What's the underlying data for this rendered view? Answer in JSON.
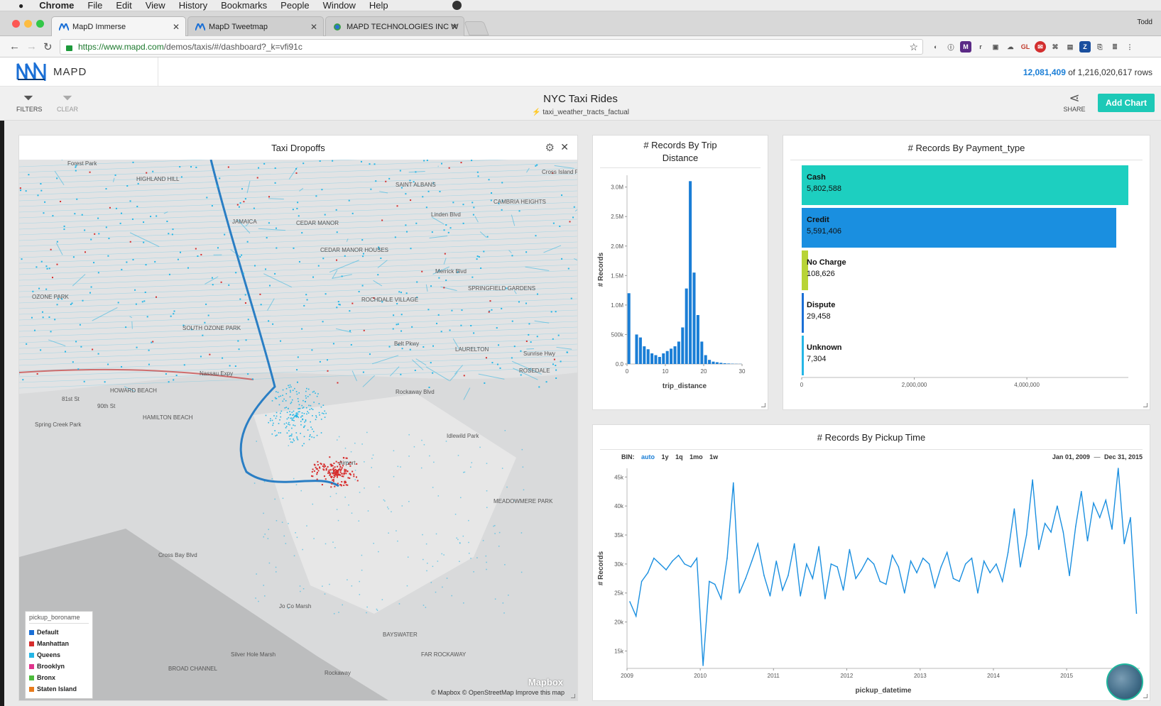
{
  "macos": {
    "app": "Chrome",
    "menus": [
      "File",
      "Edit",
      "View",
      "History",
      "Bookmarks",
      "People",
      "Window",
      "Help"
    ]
  },
  "browser": {
    "tabs": [
      {
        "title": "MapD Immerse",
        "active": true
      },
      {
        "title": "MapD Tweetmap",
        "active": false
      },
      {
        "title": "MAPD TECHNOLOGIES INC W",
        "active": false
      }
    ],
    "user": "Todd",
    "url_prefix": "https://www.mapd.com",
    "url_rest": "/demos/taxis/#/dashboard?_k=vfi91c"
  },
  "header": {
    "logo_text": "MAPD",
    "rows_filtered": "12,081,409",
    "rows_total_text": "of 1,216,020,617 rows"
  },
  "toolbar": {
    "filters_label": "FILTERS",
    "clear_label": "CLEAR",
    "title": "NYC Taxi Rides",
    "source": "taxi_weather_tracts_factual",
    "share_label": "SHARE",
    "add_chart_label": "Add Chart"
  },
  "map_panel": {
    "title": "Taxi Dropoffs",
    "legend_title": "pickup_boroname",
    "legend": [
      {
        "label": "Default",
        "color": "#1a6fd6"
      },
      {
        "label": "Manhattan",
        "color": "#d62c2c"
      },
      {
        "label": "Queens",
        "color": "#25b6e6"
      },
      {
        "label": "Brooklyn",
        "color": "#e0338b"
      },
      {
        "label": "Bronx",
        "color": "#4cbb3c"
      },
      {
        "label": "Staten Island",
        "color": "#e87b1c"
      }
    ],
    "place_labels": [
      "Forest Park",
      "HIGHLAND HILL",
      "JAMAICA",
      "SAINT ALBANS",
      "CAMBRIA HEIGHTS",
      "CEDAR MANOR",
      "CEDAR MANOR HOUSES",
      "OZONE PARK",
      "SOUTH OZONE PARK",
      "ROCHDALE VILLAGE",
      "SPRINGFIELD GARDENS",
      "LAURELTON",
      "ROSEDALE",
      "HOWARD BEACH",
      "HAMILTON BEACH",
      "Spring Creek Park",
      "Idlewild Park",
      "Airport",
      "MEADOWMERE PARK",
      "Jo Co Marsh",
      "BAYSWATER",
      "Silver Hole Marsh",
      "BROAD CHANNEL",
      "FAR ROCKAWAY",
      "Rockaway",
      "81st St",
      "90th St",
      "Cross Bay Blvd",
      "Nassau Expy",
      "Linden Blvd",
      "Merrick Blvd",
      "Rockaway Blvd",
      "Sunrise Hwy",
      "Cross Island Pkwy",
      "Belt Pkwy"
    ],
    "credit": "© Mapbox   © OpenStreetMap   Improve this map",
    "mapbox": "Mapbox"
  },
  "trip_panel": {
    "title_line1": "# Records By Trip",
    "title_line2": "Distance",
    "chart_data": {
      "type": "bar",
      "xlabel": "trip_distance",
      "ylabel": "# Records",
      "xlim": [
        0,
        30
      ],
      "ylim": [
        0,
        3200000
      ],
      "x_ticks": [
        "0",
        "10",
        "20",
        "30"
      ],
      "y_ticks": [
        [
          "0.0",
          0
        ],
        [
          "500k",
          500000
        ],
        [
          "1.0M",
          1000000
        ],
        [
          "1.5M",
          1500000
        ],
        [
          "2.0M",
          2000000
        ],
        [
          "2.5M",
          2500000
        ],
        [
          "3.0M",
          3000000
        ]
      ],
      "x": [
        0.5,
        1.5,
        2.5,
        3.5,
        4.5,
        5.5,
        6.5,
        7.5,
        8.5,
        9.5,
        10.5,
        11.5,
        12.5,
        13.5,
        14.5,
        15.5,
        16.5,
        17.5,
        18.5,
        19.5,
        20.5,
        21.5,
        22.5,
        23.5,
        24.5,
        25.5,
        26.5,
        27.5,
        28.5,
        29.5
      ],
      "values": [
        1200000,
        0,
        500000,
        450000,
        300000,
        250000,
        180000,
        150000,
        120000,
        180000,
        220000,
        260000,
        300000,
        380000,
        620000,
        1280000,
        3100000,
        1550000,
        830000,
        380000,
        150000,
        70000,
        40000,
        30000,
        20000,
        12000,
        8000,
        5000,
        3000,
        2000
      ],
      "color": "#1a7ed6"
    }
  },
  "payment_panel": {
    "title": "# Records By Payment_type",
    "chart_data": {
      "type": "bar",
      "orientation": "horizontal",
      "categories": [
        "Cash",
        "Credit",
        "No Charge",
        "Dispute",
        "Unknown"
      ],
      "values": [
        5802588,
        5591406,
        108626,
        29458,
        7304
      ],
      "value_labels": [
        "5,802,588",
        "5,591,406",
        "108,626",
        "29,458",
        "7,304"
      ],
      "colors": [
        "#1dcfc0",
        "#1a8fe0",
        "#b8d436",
        "#1a6fd6",
        "#25b6e6"
      ],
      "xlim": [
        0,
        5802588
      ],
      "x_ticks": [
        [
          "0",
          0
        ],
        [
          "2,000,000",
          2000000
        ],
        [
          "4,000,000",
          4000000
        ]
      ]
    }
  },
  "time_panel": {
    "title": "# Records By Pickup Time",
    "bin_label": "BIN:",
    "bins": [
      "auto",
      "1y",
      "1q",
      "1mo",
      "1w"
    ],
    "selected_bin": "auto",
    "date_start": "Jan 01, 2009",
    "date_end": "Dec 31, 2015",
    "chart_data": {
      "type": "line",
      "xlabel": "pickup_datetime",
      "ylabel": "# Records",
      "xlim": [
        "2009-01-01",
        "2015-12-31"
      ],
      "ylim": [
        12000,
        46500
      ],
      "x_ticks": [
        "2009",
        "2010",
        "2011",
        "2012",
        "2013",
        "2014",
        "2015"
      ],
      "y_ticks": [
        [
          "15k",
          15000
        ],
        [
          "20k",
          20000
        ],
        [
          "25k",
          25000
        ],
        [
          "30k",
          30000
        ],
        [
          "35k",
          35000
        ],
        [
          "40k",
          40000
        ],
        [
          "45k",
          45000
        ]
      ],
      "color": "#1a8fe0",
      "series": [
        {
          "x": [
            "2009-01",
            "2009-02",
            "2009-03",
            "2009-04",
            "2009-05",
            "2009-06",
            "2009-07",
            "2009-08",
            "2009-09",
            "2009-10",
            "2009-11",
            "2009-12",
            "2010-01",
            "2010-02",
            "2010-03",
            "2010-04",
            "2010-05",
            "2010-06",
            "2010-07",
            "2010-08",
            "2010-09",
            "2010-10",
            "2010-11",
            "2010-12",
            "2011-01",
            "2011-02",
            "2011-03",
            "2011-04",
            "2011-05",
            "2011-06",
            "2011-07",
            "2011-08",
            "2011-09",
            "2011-10",
            "2011-11",
            "2011-12",
            "2012-01",
            "2012-02",
            "2012-03",
            "2012-04",
            "2012-05",
            "2012-06",
            "2012-07",
            "2012-08",
            "2012-09",
            "2012-10",
            "2012-11",
            "2012-12",
            "2013-01",
            "2013-02",
            "2013-03",
            "2013-04",
            "2013-05",
            "2013-06",
            "2013-07",
            "2013-08",
            "2013-09",
            "2013-10",
            "2013-11",
            "2013-12",
            "2014-01",
            "2014-02",
            "2014-03",
            "2014-04",
            "2014-05",
            "2014-06",
            "2014-07",
            "2014-08",
            "2014-09",
            "2014-10",
            "2014-11",
            "2014-12",
            "2015-01",
            "2015-02",
            "2015-03",
            "2015-04",
            "2015-05",
            "2015-06",
            "2015-07",
            "2015-08",
            "2015-09",
            "2015-10",
            "2015-11",
            "2015-12"
          ],
          "values": [
            23500,
            21000,
            27000,
            28500,
            31000,
            30000,
            29000,
            30500,
            31500,
            30000,
            29500,
            31000,
            12500,
            27000,
            26500,
            24000,
            31000,
            44000,
            25000,
            27500,
            30500,
            33500,
            28000,
            24500,
            30500,
            25500,
            28000,
            33500,
            24500,
            30000,
            27500,
            33000,
            24000,
            30000,
            29500,
            25500,
            32500,
            27500,
            29000,
            31000,
            30000,
            27000,
            26500,
            31500,
            29500,
            25000,
            30500,
            28500,
            31000,
            30000,
            26000,
            29500,
            32000,
            27500,
            27000,
            30000,
            31000,
            25000,
            30500,
            28500,
            30000,
            27000,
            32000,
            39500,
            29500,
            35000,
            44500,
            32500,
            37000,
            35500,
            40000,
            35500,
            28000,
            36500,
            42500,
            34000,
            40500,
            38000,
            41000,
            36000,
            46500,
            33500,
            38000,
            21500
          ]
        }
      ]
    }
  }
}
